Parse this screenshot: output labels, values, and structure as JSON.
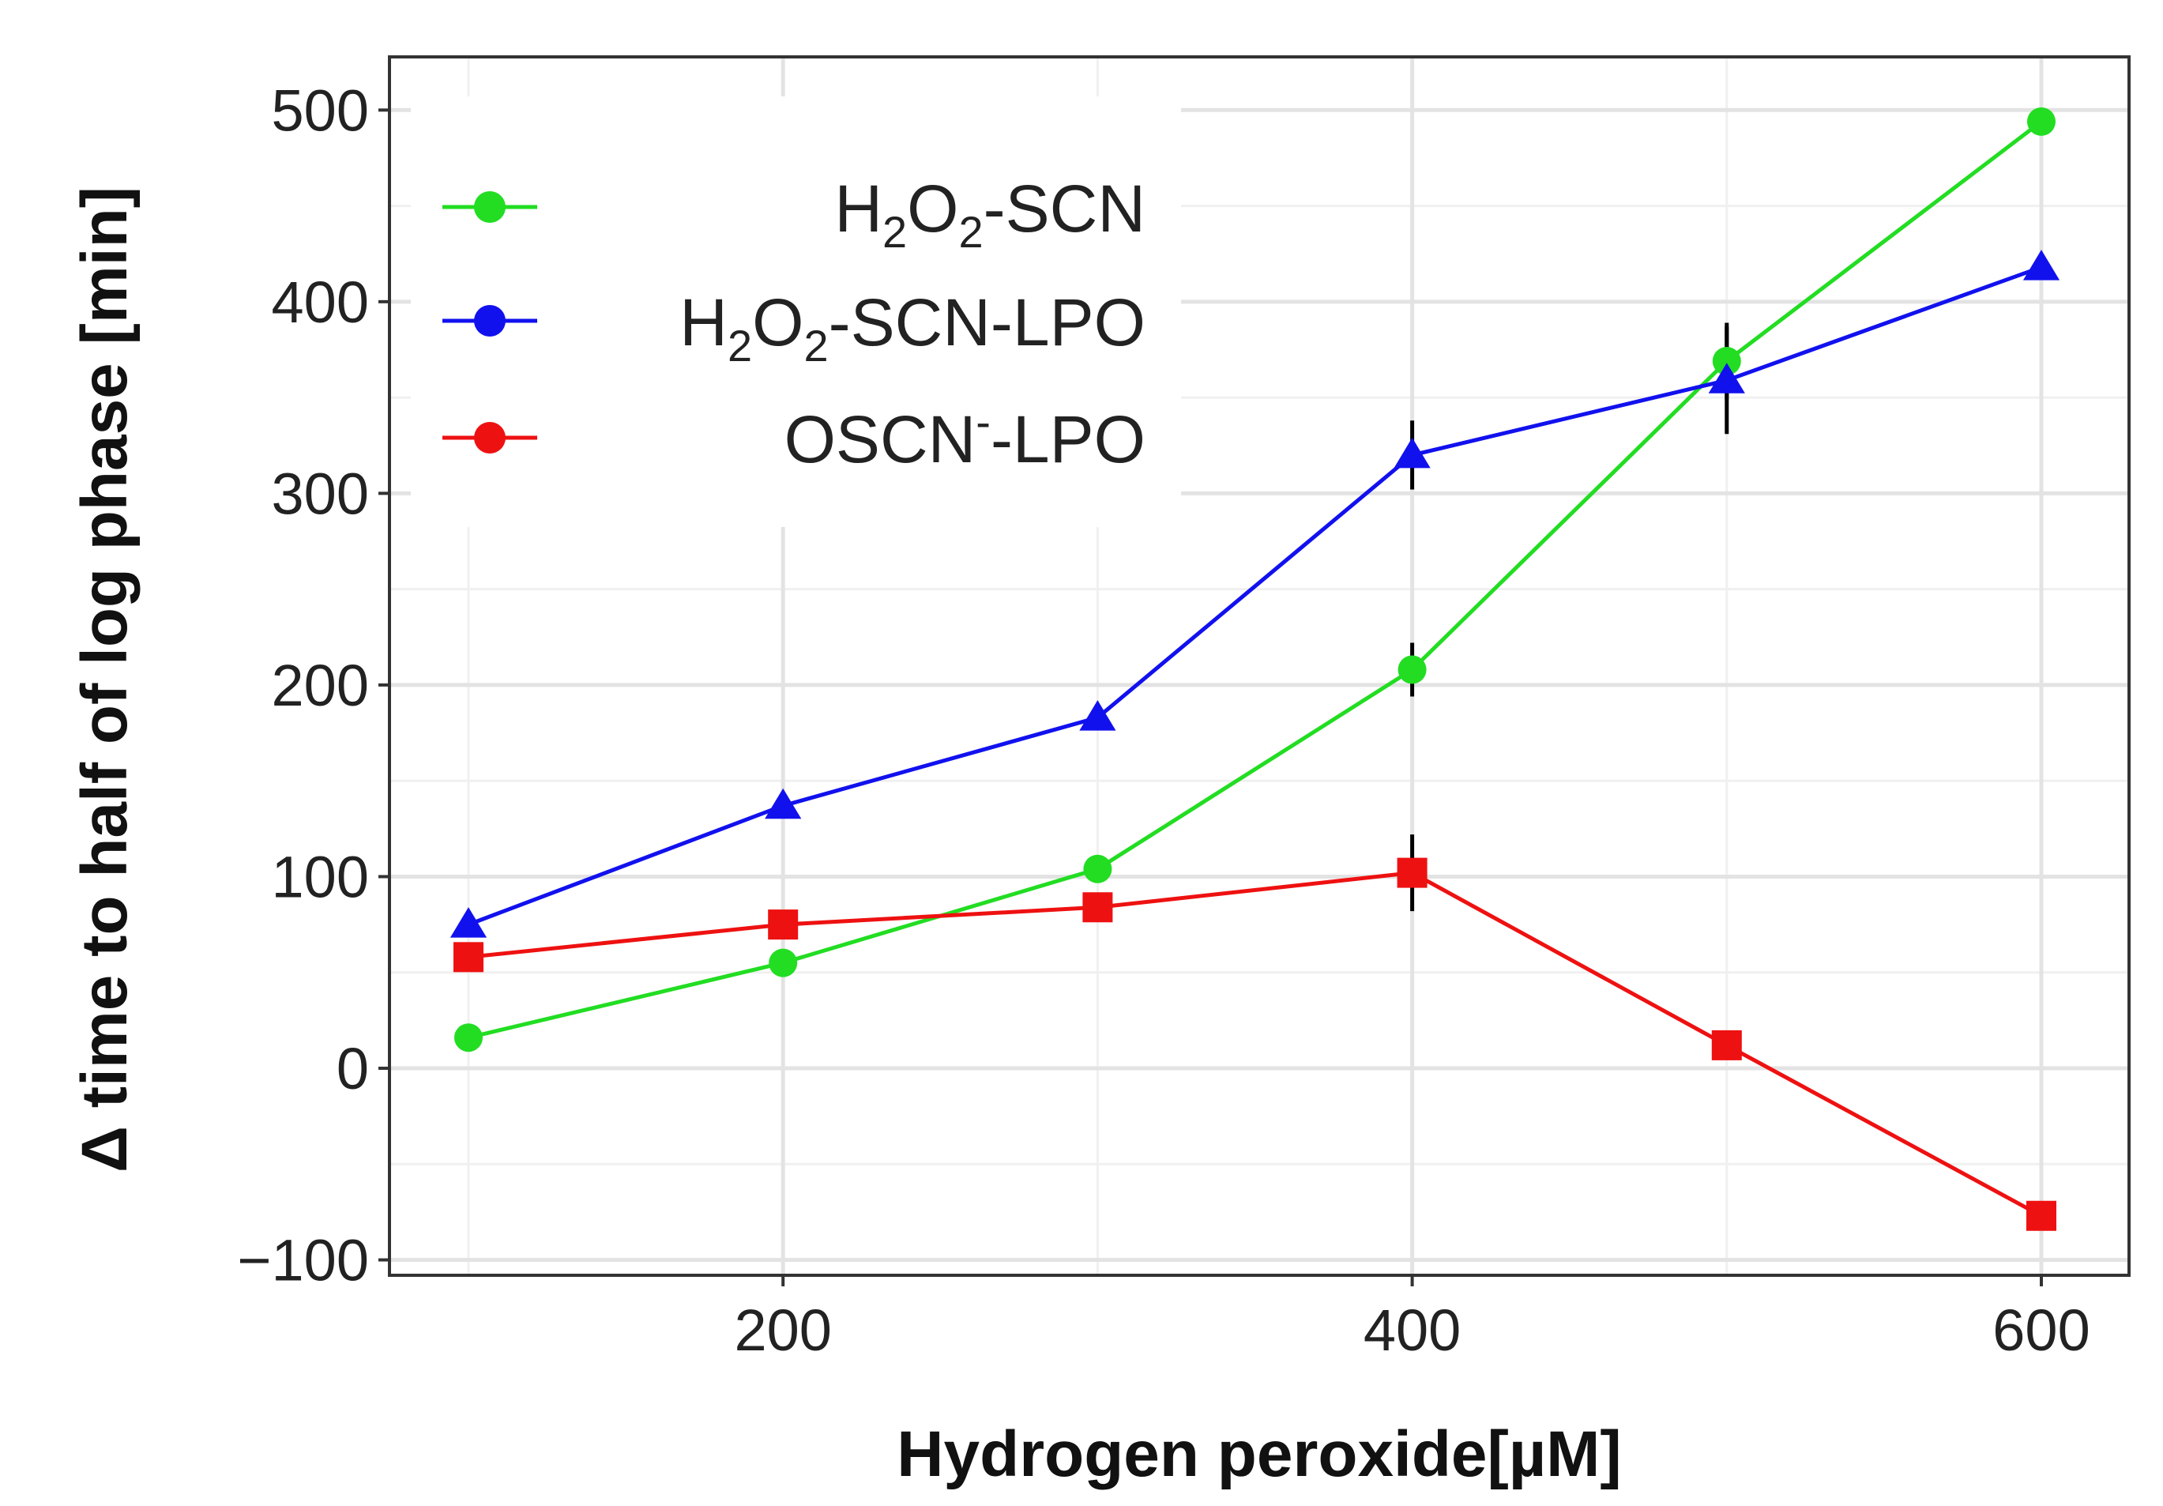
{
  "chart_data": {
    "type": "line",
    "title": "",
    "xlabel": "Hydrogen peroxide[µM]",
    "ylabel": "Δ time to half of log phase [min]",
    "xlim": [
      80,
      620
    ],
    "ylim": [
      -110,
      510
    ],
    "xticks": [
      200,
      400,
      600
    ],
    "xtick_labels": [
      "200",
      "400",
      "600"
    ],
    "yticks": [
      -100,
      0,
      100,
      200,
      300,
      400,
      500
    ],
    "ytick_labels": [
      "−100",
      "0",
      "100",
      "200",
      "300",
      "400",
      "500"
    ],
    "grid": true,
    "legend_position": "top-left",
    "x": [
      100,
      200,
      300,
      400,
      500,
      600
    ],
    "series": [
      {
        "name": "H2O2-SCN",
        "legend_parts": {
          "a": "H",
          "b": "2",
          "c": "O",
          "d": "2",
          "e": "-SCN"
        },
        "color": "#22dd22",
        "marker": "circle",
        "values": [
          16,
          55,
          104,
          208,
          369,
          494
        ],
        "errors": [
          4,
          4,
          6,
          14,
          20,
          5
        ]
      },
      {
        "name": "H2O2-SCN-LPO",
        "legend_parts": {
          "a": "H",
          "b": "2",
          "c": "O",
          "d": "2",
          "e": "-SCN-LPO"
        },
        "color": "#1111ee",
        "marker": "triangle",
        "values": [
          75,
          137,
          183,
          320,
          359,
          418
        ],
        "errors": [
          4,
          5,
          5,
          18,
          28,
          5
        ]
      },
      {
        "name": "OSCN−-LPO",
        "legend_parts": {
          "a": "OSCN",
          "b": "-",
          "c": "-LPO"
        },
        "color": "#ee1111",
        "marker": "square",
        "values": [
          58,
          75,
          84,
          102,
          12,
          -77
        ],
        "errors": [
          7,
          6,
          5,
          20,
          3,
          5
        ]
      }
    ]
  }
}
